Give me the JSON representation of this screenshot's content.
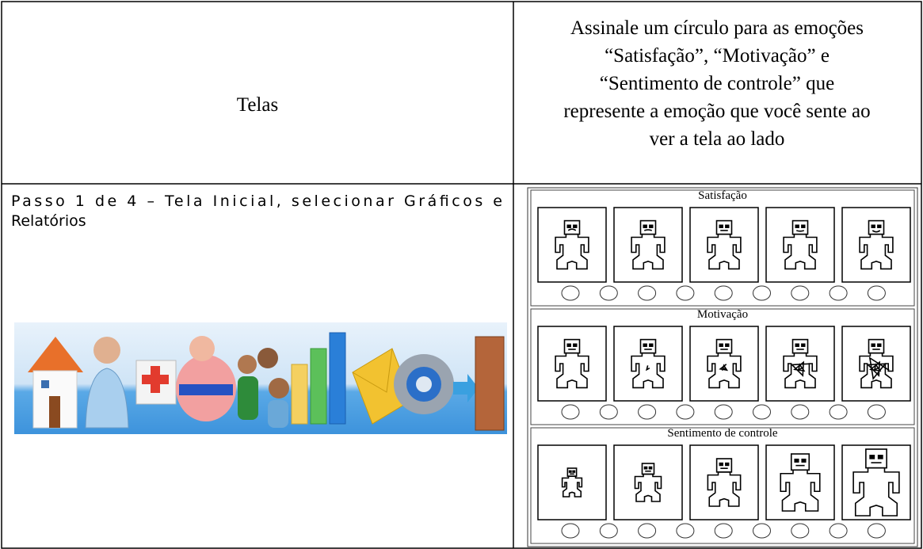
{
  "header": {
    "col1": "Telas",
    "col2_lines": [
      "Assinale um círculo para as emoções",
      "“Satisfação”, “Motivação” e",
      "“Sentimento de controle” que",
      "represente a emoção que você sente ao",
      "ver a tela ao lado"
    ]
  },
  "step_lines": [
    "Passo 1 de 4 – Tela Inicial, selecionar Gráficos e",
    "Relatórios"
  ],
  "rating_panel": {
    "sections": [
      {
        "title": "Satisfação"
      },
      {
        "title": "Motivação"
      },
      {
        "title": "Sentimento de controle"
      }
    ]
  }
}
